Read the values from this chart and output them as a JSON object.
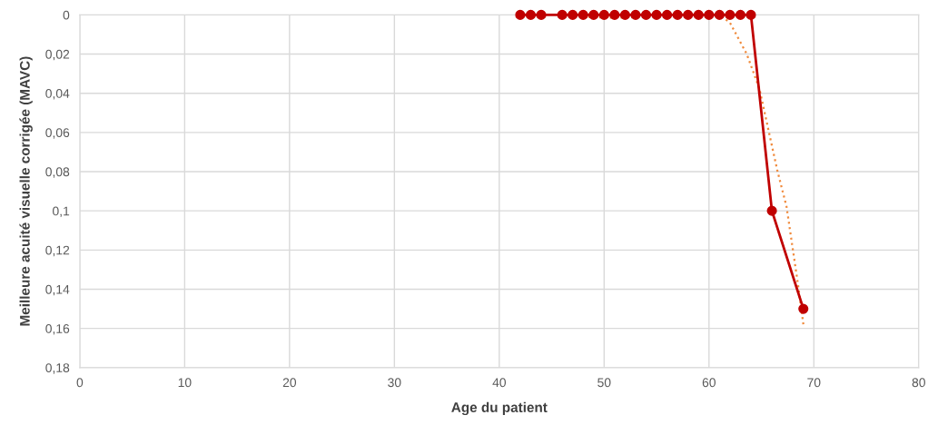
{
  "chart_data": {
    "type": "line",
    "xlabel": "Age du patient",
    "ylabel": "Meilleure acuité visuelle corrigée (MAVC)",
    "xlim": [
      0,
      80
    ],
    "xticks": [
      0,
      10,
      20,
      30,
      40,
      50,
      60,
      70,
      80
    ],
    "ylim": [
      0.18,
      0
    ],
    "yticks": [
      {
        "value": 0,
        "label": "0"
      },
      {
        "value": 0.02,
        "label": "0,02"
      },
      {
        "value": 0.04,
        "label": "0,04"
      },
      {
        "value": 0.06,
        "label": "0,06"
      },
      {
        "value": 0.08,
        "label": "0,08"
      },
      {
        "value": 0.1,
        "label": "0,1"
      },
      {
        "value": 0.12,
        "label": "0,12"
      },
      {
        "value": 0.14,
        "label": "0,14"
      },
      {
        "value": 0.16,
        "label": "0,16"
      },
      {
        "value": 0.18,
        "label": "0,18"
      }
    ],
    "grid": true,
    "series": [
      {
        "color": "#f08a3c",
        "line_style": "dotted",
        "marker": "none",
        "x": [
          48,
          51,
          54,
          58,
          61,
          62,
          63.6,
          64.8,
          66.5,
          67.4,
          68.5,
          69
        ],
        "values": [
          0.001,
          0.0015,
          0.001,
          0,
          0,
          0.004,
          0.02,
          0.0375,
          0.079,
          0.098,
          0.138,
          0.158
        ]
      },
      {
        "color": "#c00000",
        "line_style": "solid",
        "marker": "circle",
        "x": [
          42,
          43,
          44,
          46,
          47,
          48,
          49,
          50,
          51,
          52,
          53,
          54,
          55,
          56,
          57,
          58,
          59,
          60,
          61,
          62,
          63,
          64,
          66,
          69
        ],
        "values": [
          0,
          0,
          0,
          0,
          0,
          0,
          0,
          0,
          0,
          0,
          0,
          0,
          0,
          0,
          0,
          0,
          0,
          0,
          0,
          0,
          0,
          0,
          0.1,
          0.15
        ]
      }
    ]
  }
}
